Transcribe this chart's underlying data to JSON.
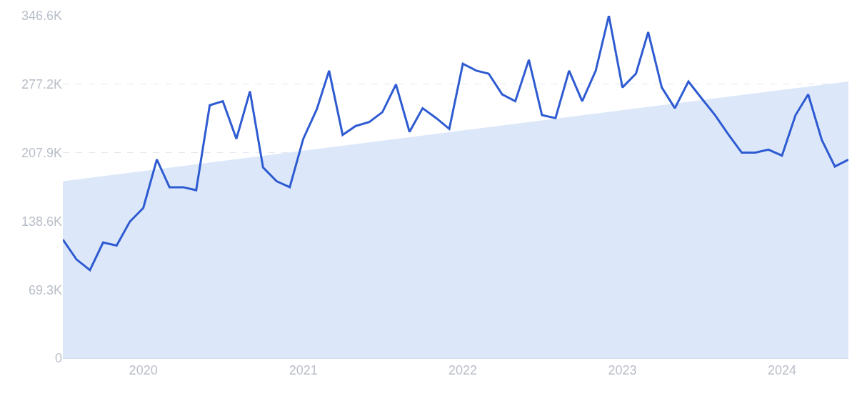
{
  "chart_data": {
    "type": "line",
    "x": [
      "2019-07",
      "2019-08",
      "2019-09",
      "2019-10",
      "2019-11",
      "2019-12",
      "2020-01",
      "2020-02",
      "2020-03",
      "2020-04",
      "2020-05",
      "2020-06",
      "2020-07",
      "2020-08",
      "2020-09",
      "2020-10",
      "2020-11",
      "2020-12",
      "2021-01",
      "2021-02",
      "2021-03",
      "2021-04",
      "2021-05",
      "2021-06",
      "2021-07",
      "2021-08",
      "2021-09",
      "2021-10",
      "2021-11",
      "2021-12",
      "2022-01",
      "2022-02",
      "2022-03",
      "2022-04",
      "2022-05",
      "2022-06",
      "2022-07",
      "2022-08",
      "2022-09",
      "2022-10",
      "2022-11",
      "2022-12",
      "2023-01",
      "2023-02",
      "2023-03",
      "2023-04",
      "2023-05",
      "2023-06",
      "2023-07",
      "2023-08",
      "2023-09",
      "2023-10",
      "2023-11",
      "2023-12",
      "2024-01",
      "2024-02",
      "2024-03",
      "2024-04",
      "2024-05",
      "2024-06"
    ],
    "series": [
      {
        "type": "area",
        "color": "#dce8fa",
        "x": [
          "2019-07",
          "2024-06"
        ],
        "values": [
          179,
          280
        ]
      },
      {
        "color": "#2e5bd1",
        "values": [
          120,
          100,
          89,
          117,
          114,
          138,
          152,
          201,
          173,
          173,
          170,
          256,
          260,
          222,
          270,
          193,
          179,
          173,
          222,
          252,
          291,
          226,
          235,
          239,
          249,
          277,
          229,
          253,
          243,
          232,
          298,
          291,
          288,
          267,
          260,
          302,
          246,
          243,
          291,
          260,
          291,
          346.6,
          274,
          288,
          330,
          274,
          253,
          280,
          263,
          246,
          226,
          208,
          208,
          211,
          205,
          246,
          267,
          221,
          194,
          201
        ]
      }
    ],
    "xlim": [
      "2019-07",
      "2024-06"
    ],
    "xticks": [
      {
        "value": "2020-01",
        "label": "2020"
      },
      {
        "value": "2021-01",
        "label": "2021"
      },
      {
        "value": "2022-01",
        "label": "2022"
      },
      {
        "value": "2023-01",
        "label": "2023"
      },
      {
        "value": "2024-01",
        "label": "2024"
      }
    ],
    "ylim": [
      0,
      346.6
    ],
    "yticks": [
      0,
      {
        "value": 69.3,
        "label": "69.3K"
      },
      {
        "value": 138.6,
        "label": "138.6K"
      },
      {
        "value": 207.9,
        "label": "207.9K"
      },
      {
        "value": 277.2,
        "label": "277.2K"
      },
      {
        "value": 346.6,
        "label": "346.6K"
      }
    ],
    "grid": "y",
    "line_style": "solid",
    "marker": "none"
  }
}
